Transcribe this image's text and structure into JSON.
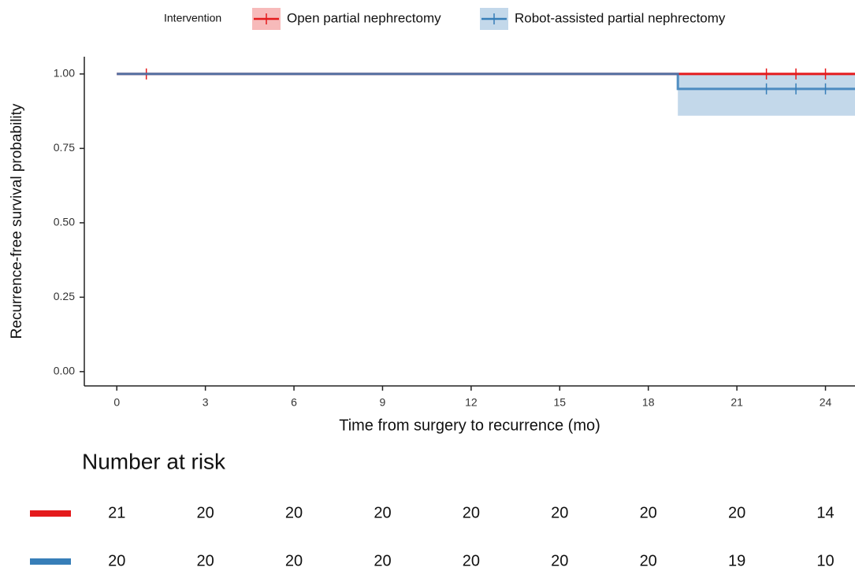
{
  "chart_data": {
    "type": "line",
    "legend_title": "Intervention",
    "x_label": "Time from surgery to recurrence (mo)",
    "y_label": "Recurrence-free survival probability",
    "xlim": [
      -1.1,
      25
    ],
    "ylim": [
      -0.048,
      1.058
    ],
    "xticks": [
      0,
      3,
      6,
      9,
      12,
      15,
      18,
      21,
      24
    ],
    "yticks": [
      {
        "value": 0,
        "label": "0.00"
      },
      {
        "value": 0.25,
        "label": "0.25"
      },
      {
        "value": 0.5,
        "label": "0.50"
      },
      {
        "value": 0.75,
        "label": "0.75"
      },
      {
        "value": 1,
        "label": "1.00"
      }
    ],
    "series": [
      {
        "name": "Open partial nephrectomy",
        "color": "#e41a1c",
        "x": [
          0,
          25
        ],
        "values": [
          1,
          1
        ],
        "censor_x": [
          1,
          22,
          23,
          24
        ],
        "censor_values": [
          1,
          1,
          1,
          1
        ]
      },
      {
        "name": "Robot-assisted partial nephrectomy",
        "color": "#377eb8",
        "x": [
          0,
          19,
          19,
          25
        ],
        "values": [
          1,
          1,
          0.95,
          0.95
        ],
        "ci_lower": [
          1,
          1,
          0.86,
          0.86
        ],
        "ci_upper": [
          1,
          1,
          1,
          1
        ],
        "censor_x": [
          22,
          23,
          24
        ],
        "censor_values": [
          0.95,
          0.95,
          0.95
        ]
      }
    ],
    "risk_table": {
      "title": "Number at risk",
      "rows": [
        {
          "color": "#e41a1c",
          "values": [
            21,
            20,
            20,
            20,
            20,
            20,
            20,
            20,
            14
          ]
        },
        {
          "color": "#377eb8",
          "values": [
            20,
            20,
            20,
            20,
            20,
            20,
            20,
            19,
            10
          ]
        }
      ]
    }
  }
}
